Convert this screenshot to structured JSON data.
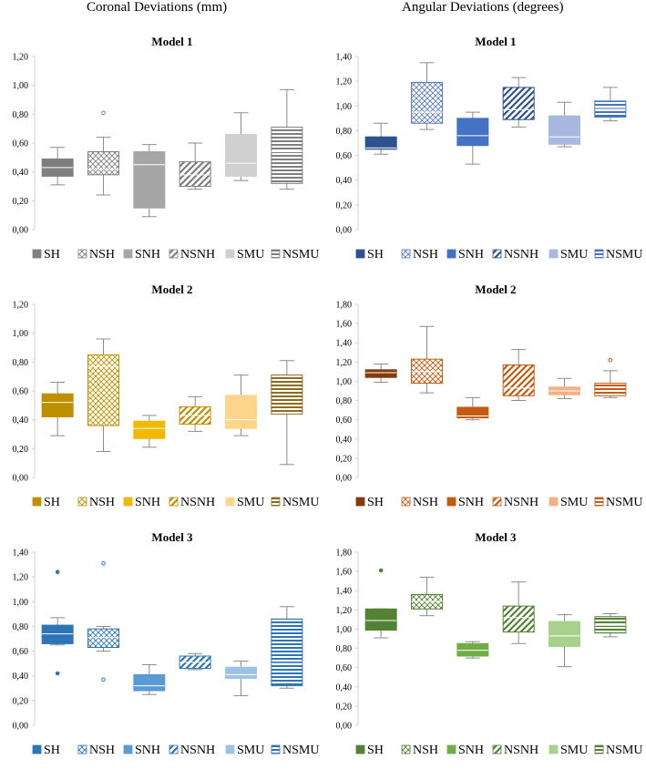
{
  "column_titles": {
    "left": "Coronal Deviations (mm)",
    "right": "Angular Deviations (degrees)"
  },
  "legend_labels": [
    "SH",
    "NSH",
    "SNH",
    "NSNH",
    "SMU",
    "NSMU"
  ],
  "chart_data": [
    {
      "id": "coronal-model-1",
      "type": "boxplot",
      "title": "Model 1",
      "ylim": [
        0,
        1.2
      ],
      "ystep": 0.2,
      "yticks": [
        "0,00",
        "0,20",
        "0,40",
        "0,60",
        "0,80",
        "1,00",
        "1,20"
      ],
      "series": [
        {
          "name": "SH",
          "pattern": "solid",
          "color": "#7f7f7f",
          "min": 0.31,
          "q1": 0.37,
          "median": 0.43,
          "q3": 0.49,
          "max": 0.57,
          "outliers": []
        },
        {
          "name": "NSH",
          "pattern": "crosshatch",
          "color": "#7f7f7f",
          "min": 0.24,
          "q1": 0.38,
          "median": 0.42,
          "q3": 0.54,
          "max": 0.64,
          "outliers": [
            0.81
          ]
        },
        {
          "name": "SNH",
          "pattern": "solid",
          "color": "#a6a6a6",
          "min": 0.09,
          "q1": 0.15,
          "median": 0.45,
          "q3": 0.54,
          "max": 0.59,
          "outliers": []
        },
        {
          "name": "NSNH",
          "pattern": "diagonal",
          "color": "#7f7f7f",
          "min": 0.28,
          "q1": 0.3,
          "median": 0.38,
          "q3": 0.47,
          "max": 0.6,
          "outliers": []
        },
        {
          "name": "SMU",
          "pattern": "solid",
          "color": "#d0d0d0",
          "min": 0.34,
          "q1": 0.37,
          "median": 0.46,
          "q3": 0.66,
          "max": 0.81,
          "outliers": []
        },
        {
          "name": "NSMU",
          "pattern": "horizontal",
          "color": "#7f7f7f",
          "min": 0.28,
          "q1": 0.32,
          "median": 0.54,
          "q3": 0.71,
          "max": 0.97,
          "outliers": []
        }
      ]
    },
    {
      "id": "angular-model-1",
      "type": "boxplot",
      "title": "Model 1",
      "ylim": [
        0,
        1.4
      ],
      "ystep": 0.2,
      "yticks": [
        "0,00",
        "0,20",
        "0,40",
        "0,60",
        "0,80",
        "1,00",
        "1,20",
        "1,40"
      ],
      "series": [
        {
          "name": "SH",
          "pattern": "solid",
          "color": "#2f528f",
          "min": 0.61,
          "q1": 0.65,
          "median": 0.66,
          "q3": 0.75,
          "max": 0.86,
          "outliers": []
        },
        {
          "name": "NSH",
          "pattern": "crosshatch",
          "color": "#5b7cbf",
          "min": 0.81,
          "q1": 0.86,
          "median": 0.95,
          "q3": 1.19,
          "max": 1.35,
          "outliers": []
        },
        {
          "name": "SNH",
          "pattern": "solid",
          "color": "#4472c4",
          "min": 0.53,
          "q1": 0.68,
          "median": 0.76,
          "q3": 0.9,
          "max": 0.95,
          "outliers": []
        },
        {
          "name": "NSNH",
          "pattern": "diagonal",
          "color": "#2f528f",
          "min": 0.83,
          "q1": 0.89,
          "median": 0.97,
          "q3": 1.15,
          "max": 1.23,
          "outliers": []
        },
        {
          "name": "SMU",
          "pattern": "solid",
          "color": "#a9b8e0",
          "min": 0.67,
          "q1": 0.69,
          "median": 0.75,
          "q3": 0.92,
          "max": 1.03,
          "outliers": []
        },
        {
          "name": "NSMU",
          "pattern": "horizontal",
          "color": "#4472c4",
          "min": 0.88,
          "q1": 0.91,
          "median": 0.98,
          "q3": 1.04,
          "max": 1.15,
          "outliers": []
        }
      ]
    },
    {
      "id": "coronal-model-2",
      "type": "boxplot",
      "title": "Model 2",
      "ylim": [
        0,
        1.2
      ],
      "ystep": 0.2,
      "yticks": [
        "0,00",
        "0,20",
        "0,40",
        "0,60",
        "0,80",
        "1,00",
        "1,20"
      ],
      "series": [
        {
          "name": "SH",
          "pattern": "solid",
          "color": "#bf8f00",
          "min": 0.29,
          "q1": 0.42,
          "median": 0.52,
          "q3": 0.58,
          "max": 0.66,
          "outliers": []
        },
        {
          "name": "NSH",
          "pattern": "crosshatch",
          "color": "#bf9000",
          "min": 0.18,
          "q1": 0.36,
          "median": 0.77,
          "q3": 0.85,
          "max": 0.96,
          "outliers": []
        },
        {
          "name": "SNH",
          "pattern": "solid",
          "color": "#f2b800",
          "min": 0.21,
          "q1": 0.27,
          "median": 0.34,
          "q3": 0.39,
          "max": 0.43,
          "outliers": []
        },
        {
          "name": "NSNH",
          "pattern": "diagonal",
          "color": "#bf8f00",
          "min": 0.32,
          "q1": 0.37,
          "median": 0.43,
          "q3": 0.49,
          "max": 0.56,
          "outliers": []
        },
        {
          "name": "SMU",
          "pattern": "solid",
          "color": "#ffd58c",
          "min": 0.29,
          "q1": 0.34,
          "median": 0.4,
          "q3": 0.57,
          "max": 0.71,
          "outliers": []
        },
        {
          "name": "NSMU",
          "pattern": "horizontal",
          "color": "#8c6d1f",
          "min": 0.09,
          "q1": 0.44,
          "median": 0.5,
          "q3": 0.71,
          "max": 0.81,
          "outliers": []
        }
      ]
    },
    {
      "id": "angular-model-2",
      "type": "boxplot",
      "title": "Model 2",
      "ylim": [
        0,
        1.8
      ],
      "ystep": 0.2,
      "yticks": [
        "0,00",
        "0,20",
        "0,40",
        "0,60",
        "0,80",
        "1,00",
        "1,20",
        "1,40",
        "1,60",
        "1,80"
      ],
      "series": [
        {
          "name": "SH",
          "pattern": "solid",
          "color": "#843c0c",
          "min": 0.99,
          "q1": 1.04,
          "median": 1.09,
          "q3": 1.12,
          "max": 1.18,
          "outliers": []
        },
        {
          "name": "NSH",
          "pattern": "crosshatch",
          "color": "#c55a11",
          "min": 0.88,
          "q1": 0.98,
          "median": 1.1,
          "q3": 1.23,
          "max": 1.57,
          "outliers": []
        },
        {
          "name": "SNH",
          "pattern": "solid",
          "color": "#c55a11",
          "min": 0.6,
          "q1": 0.62,
          "median": 0.64,
          "q3": 0.73,
          "max": 0.83,
          "outliers": []
        },
        {
          "name": "NSNH",
          "pattern": "diagonal",
          "color": "#c55a11",
          "min": 0.8,
          "q1": 0.85,
          "median": 0.93,
          "q3": 1.17,
          "max": 1.33,
          "outliers": []
        },
        {
          "name": "SMU",
          "pattern": "solid",
          "color": "#f4b183",
          "min": 0.82,
          "q1": 0.86,
          "median": 0.9,
          "q3": 0.94,
          "max": 1.03,
          "outliers": []
        },
        {
          "name": "NSMU",
          "pattern": "horizontal",
          "color": "#c55a11",
          "min": 0.83,
          "q1": 0.85,
          "median": 0.9,
          "q3": 0.98,
          "max": 1.11,
          "outliers": [
            1.22
          ]
        }
      ]
    },
    {
      "id": "coronal-model-3",
      "type": "boxplot",
      "title": "Model 3",
      "ylim": [
        0,
        1.4
      ],
      "ystep": 0.2,
      "yticks": [
        "0,00",
        "0,20",
        "0,40",
        "0,60",
        "0,80",
        "1,00",
        "1,20",
        "1,40"
      ],
      "series": [
        {
          "name": "SH",
          "pattern": "solid",
          "color": "#2e75b6",
          "min": 0.65,
          "q1": 0.66,
          "median": 0.74,
          "q3": 0.81,
          "max": 0.87,
          "outliers": [
            1.24,
            0.42
          ]
        },
        {
          "name": "NSH",
          "pattern": "crosshatch",
          "color": "#2e75b6",
          "min": 0.6,
          "q1": 0.63,
          "median": 0.71,
          "q3": 0.78,
          "max": 0.8,
          "outliers": [
            1.31,
            0.37
          ]
        },
        {
          "name": "SNH",
          "pattern": "solid",
          "color": "#5b9bd5",
          "min": 0.25,
          "q1": 0.28,
          "median": 0.32,
          "q3": 0.41,
          "max": 0.49,
          "outliers": []
        },
        {
          "name": "NSNH",
          "pattern": "diagonal",
          "color": "#2e75b6",
          "min": 0.45,
          "q1": 0.46,
          "median": 0.51,
          "q3": 0.56,
          "max": 0.58,
          "outliers": []
        },
        {
          "name": "SMU",
          "pattern": "solid",
          "color": "#9dc3e6",
          "min": 0.24,
          "q1": 0.38,
          "median": 0.41,
          "q3": 0.47,
          "max": 0.52,
          "outliers": []
        },
        {
          "name": "NSMU",
          "pattern": "horizontal",
          "color": "#2e75b6",
          "min": 0.3,
          "q1": 0.32,
          "median": 0.5,
          "q3": 0.86,
          "max": 0.96,
          "outliers": []
        }
      ]
    },
    {
      "id": "angular-model-3",
      "type": "boxplot",
      "title": "Model 3",
      "ylim": [
        0,
        1.8
      ],
      "ystep": 0.2,
      "yticks": [
        "0,00",
        "0,20",
        "0,40",
        "0,60",
        "0,80",
        "1,00",
        "1,20",
        "1,40",
        "1,60",
        "1,80"
      ],
      "series": [
        {
          "name": "SH",
          "pattern": "solid",
          "color": "#548235",
          "min": 0.91,
          "q1": 0.99,
          "median": 1.09,
          "q3": 1.21,
          "max": 1.21,
          "outliers": [
            1.61
          ]
        },
        {
          "name": "NSH",
          "pattern": "crosshatch",
          "color": "#548235",
          "min": 1.14,
          "q1": 1.21,
          "median": 1.29,
          "q3": 1.36,
          "max": 1.54,
          "outliers": []
        },
        {
          "name": "SNH",
          "pattern": "solid",
          "color": "#70ad47",
          "min": 0.7,
          "q1": 0.72,
          "median": 0.78,
          "q3": 0.85,
          "max": 0.87,
          "outliers": []
        },
        {
          "name": "NSNH",
          "pattern": "diagonal",
          "color": "#548235",
          "min": 0.85,
          "q1": 0.97,
          "median": 1.12,
          "q3": 1.24,
          "max": 1.49,
          "outliers": []
        },
        {
          "name": "SMU",
          "pattern": "solid",
          "color": "#a9d18e",
          "min": 0.61,
          "q1": 0.82,
          "median": 0.93,
          "q3": 1.08,
          "max": 1.15,
          "outliers": []
        },
        {
          "name": "NSMU",
          "pattern": "horizontal",
          "color": "#548235",
          "min": 0.92,
          "q1": 0.96,
          "median": 1.04,
          "q3": 1.13,
          "max": 1.16,
          "outliers": []
        }
      ]
    }
  ]
}
